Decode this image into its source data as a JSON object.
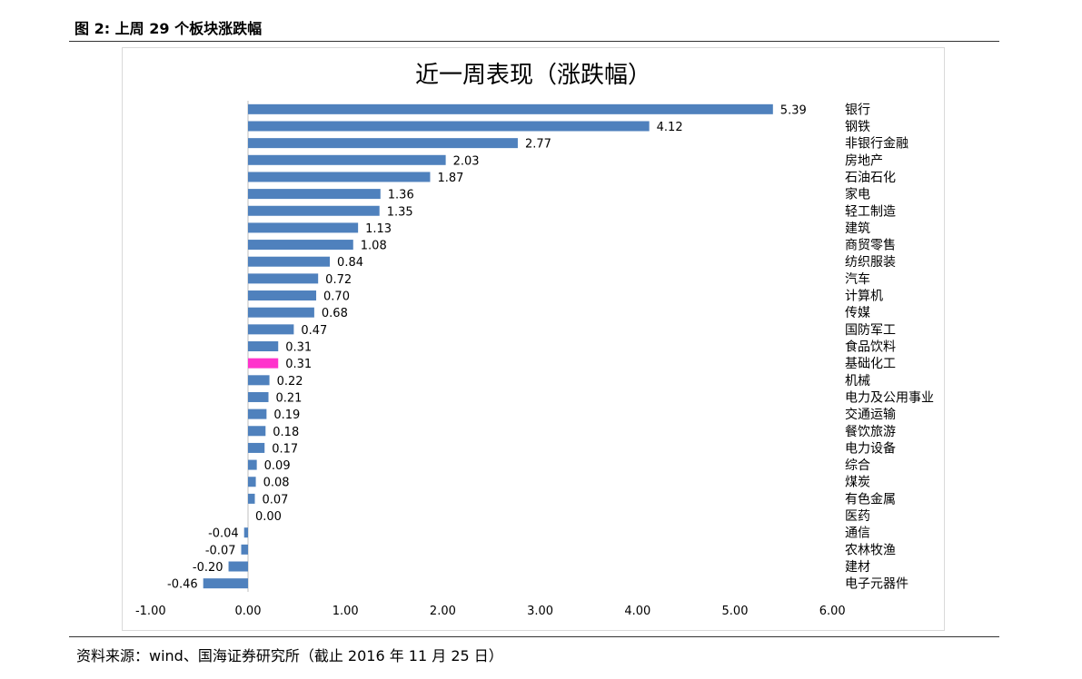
{
  "figure_caption": "图 2:  上周 29 个板块涨跌幅",
  "source_note": "资料来源：wind、国海证券研究所（截止 2016 年 11 月 25 日）",
  "chart_data": {
    "type": "bar",
    "orientation": "horizontal",
    "title": "近一周表现（涨跌幅）",
    "xlabel": "",
    "ylabel": "",
    "xlim": [
      -1.0,
      6.0
    ],
    "xticks": [
      "-1.00",
      "0.00",
      "1.00",
      "2.00",
      "3.00",
      "4.00",
      "5.00",
      "6.00"
    ],
    "xtick_values": [
      -1,
      0,
      1,
      2,
      3,
      4,
      5,
      6
    ],
    "grid": false,
    "legend": "none",
    "colors": {
      "default": "#4f81bd",
      "highlight": "#ff33cc"
    },
    "highlight_category": "基础化工",
    "categories": [
      "银行",
      "钢铁",
      "非银行金融",
      "房地产",
      "石油石化",
      "家电",
      "轻工制造",
      "建筑",
      "商贸零售",
      "纺织服装",
      "汽车",
      "计算机",
      "传媒",
      "国防军工",
      "食品饮料",
      "基础化工",
      "机械",
      "电力及公用事业",
      "交通运输",
      "餐饮旅游",
      "电力设备",
      "综合",
      "煤炭",
      "有色金属",
      "医药",
      "通信",
      "农林牧渔",
      "建材",
      "电子元器件"
    ],
    "values": [
      5.39,
      4.12,
      2.77,
      2.03,
      1.87,
      1.36,
      1.35,
      1.13,
      1.08,
      0.84,
      0.72,
      0.7,
      0.68,
      0.47,
      0.31,
      0.31,
      0.22,
      0.21,
      0.19,
      0.18,
      0.17,
      0.09,
      0.08,
      0.07,
      0.0,
      -0.04,
      -0.07,
      -0.2,
      -0.46
    ],
    "value_labels": [
      "5.39",
      "4.12",
      "2.77",
      "2.03",
      "1.87",
      "1.36",
      "1.35",
      "1.13",
      "1.08",
      "0.84",
      "0.72",
      "0.70",
      "0.68",
      "0.47",
      "0.31",
      "0.31",
      "0.22",
      "0.21",
      "0.19",
      "0.18",
      "0.17",
      "0.09",
      "0.08",
      "0.07",
      "0.00",
      "-0.04",
      "-0.07",
      "-0.20",
      "-0.46"
    ]
  }
}
